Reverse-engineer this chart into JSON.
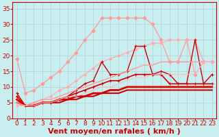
{
  "background_color": "#c8eef0",
  "grid_color": "#b0d0d0",
  "xlabel": "Vent moyen/en rafales ( km/h )",
  "xlabel_color": "#cc0000",
  "xlabel_fontsize": 8,
  "tick_color": "#cc0000",
  "tick_fontsize": 6.5,
  "xlim": [
    -0.5,
    23.5
  ],
  "ylim": [
    0,
    37
  ],
  "yticks": [
    0,
    5,
    10,
    15,
    20,
    25,
    30,
    35
  ],
  "xticks": [
    0,
    1,
    2,
    3,
    4,
    5,
    6,
    7,
    8,
    9,
    10,
    11,
    12,
    13,
    14,
    15,
    16,
    17,
    18,
    19,
    20,
    21,
    22,
    23
  ],
  "lines": [
    {
      "note": "light pink with diamonds - top line, starts high dips then rises to 32 plateau",
      "x": [
        0,
        1,
        2,
        3,
        4,
        5,
        6,
        7,
        8,
        9,
        10,
        11,
        12,
        13,
        14,
        15,
        16,
        17,
        18,
        19,
        20,
        21,
        22,
        23
      ],
      "y": [
        19,
        8,
        9,
        11,
        13,
        15,
        18,
        21,
        25,
        28,
        32,
        32,
        32,
        32,
        32,
        32,
        30,
        25,
        18,
        18,
        25,
        14,
        18,
        18
      ],
      "color": "#ff9999",
      "lw": 0.9,
      "marker": "D",
      "ms": 2.5,
      "mfc": "#ff9999"
    },
    {
      "note": "light pink diagonal line - linear ish from bottom left to top right",
      "x": [
        0,
        1,
        2,
        3,
        4,
        5,
        6,
        7,
        8,
        9,
        10,
        11,
        12,
        13,
        14,
        15,
        16,
        17,
        18,
        19,
        20,
        21,
        22,
        23
      ],
      "y": [
        4,
        4,
        5,
        6,
        7,
        9,
        10,
        12,
        14,
        16,
        18,
        19,
        20,
        21,
        22,
        23,
        24,
        24,
        25,
        25,
        25,
        25,
        18,
        18
      ],
      "color": "#ffaaaa",
      "lw": 0.9,
      "marker": "D",
      "ms": 2.0,
      "mfc": "#ffaaaa"
    },
    {
      "note": "dark red with + markers - zigzag line",
      "x": [
        0,
        1,
        2,
        3,
        4,
        5,
        6,
        7,
        8,
        9,
        10,
        11,
        12,
        13,
        14,
        15,
        16,
        17,
        18,
        19,
        20,
        21,
        22,
        23
      ],
      "y": [
        8,
        4,
        4,
        5,
        5,
        6,
        7,
        9,
        11,
        12,
        18,
        14,
        14,
        15,
        23,
        23,
        14,
        15,
        14,
        11,
        11,
        25,
        11,
        14
      ],
      "color": "#cc0000",
      "lw": 1.0,
      "marker": "+",
      "ms": 3.5,
      "mfc": "#cc0000"
    },
    {
      "note": "dark red solid - gradually rising",
      "x": [
        0,
        1,
        2,
        3,
        4,
        5,
        6,
        7,
        8,
        9,
        10,
        11,
        12,
        13,
        14,
        15,
        16,
        17,
        18,
        19,
        20,
        21,
        22,
        23
      ],
      "y": [
        7,
        4,
        4,
        5,
        5,
        6,
        7,
        8,
        9,
        10,
        11,
        12,
        12,
        13,
        14,
        14,
        14,
        14,
        11,
        11,
        11,
        11,
        11,
        11
      ],
      "color": "#cc0000",
      "lw": 1.2,
      "marker": "+",
      "ms": 3,
      "mfc": "#cc0000"
    },
    {
      "note": "dark red thick - nearly linear gentle slope",
      "x": [
        0,
        1,
        2,
        3,
        4,
        5,
        6,
        7,
        8,
        9,
        10,
        11,
        12,
        13,
        14,
        15,
        16,
        17,
        18,
        19,
        20,
        21,
        22,
        23
      ],
      "y": [
        6,
        4,
        4,
        5,
        5,
        6,
        6,
        7,
        7,
        8,
        8,
        9,
        9,
        10,
        10,
        10,
        10,
        10,
        10,
        10,
        10,
        10,
        10,
        10
      ],
      "color": "#dd0000",
      "lw": 2.0,
      "marker": null,
      "ms": 0,
      "mfc": null
    },
    {
      "note": "dark red medium - nearly linear",
      "x": [
        0,
        1,
        2,
        3,
        4,
        5,
        6,
        7,
        8,
        9,
        10,
        11,
        12,
        13,
        14,
        15,
        16,
        17,
        18,
        19,
        20,
        21,
        22,
        23
      ],
      "y": [
        5,
        4,
        4,
        5,
        5,
        5,
        6,
        6,
        7,
        7,
        8,
        8,
        8,
        9,
        9,
        9,
        9,
        9,
        9,
        9,
        9,
        9,
        9,
        9
      ],
      "color": "#cc0000",
      "lw": 1.5,
      "marker": null,
      "ms": 0,
      "mfc": null
    },
    {
      "note": "pink diagonal no marker - linear from ~5 to ~18",
      "x": [
        0,
        1,
        2,
        3,
        4,
        5,
        6,
        7,
        8,
        9,
        10,
        11,
        12,
        13,
        14,
        15,
        16,
        17,
        18,
        19,
        20,
        21,
        22,
        23
      ],
      "y": [
        5,
        4,
        5,
        6,
        6,
        7,
        8,
        9,
        10,
        11,
        12,
        13,
        14,
        15,
        16,
        17,
        17,
        18,
        18,
        18,
        18,
        18,
        18,
        18
      ],
      "color": "#ff9999",
      "lw": 1.0,
      "marker": null,
      "ms": 0,
      "mfc": null
    },
    {
      "note": "pink linear - nearly straight from ~4 to ~18",
      "x": [
        0,
        1,
        2,
        3,
        4,
        5,
        6,
        7,
        8,
        9,
        10,
        11,
        12,
        13,
        14,
        15,
        16,
        17,
        18,
        19,
        20,
        21,
        22,
        23
      ],
      "y": [
        4,
        4,
        4,
        5,
        5,
        6,
        7,
        7,
        8,
        9,
        10,
        10,
        11,
        12,
        13,
        13,
        14,
        14,
        14,
        14,
        14,
        14,
        18,
        18
      ],
      "color": "#ffbbbb",
      "lw": 0.8,
      "marker": null,
      "ms": 0,
      "mfc": null
    }
  ]
}
